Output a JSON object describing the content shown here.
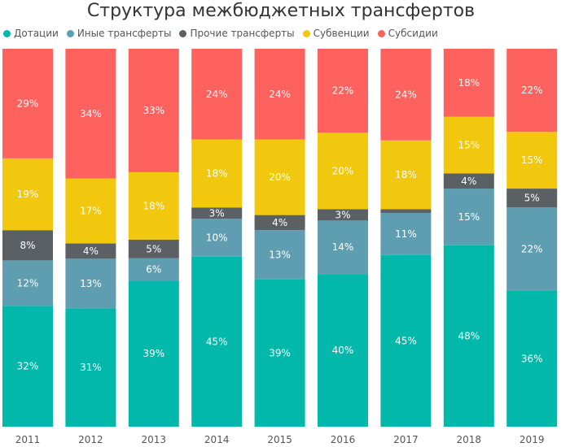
{
  "chart_data": {
    "type": "bar",
    "stacked": "100%",
    "title": "Структура межбюджетных трансфертов",
    "legend_position": "top-left",
    "categories": [
      "2011",
      "2012",
      "2013",
      "2014",
      "2015",
      "2016",
      "2017",
      "2018",
      "2019"
    ],
    "series": [
      {
        "name": "Дотации",
        "color": "#01B8AA",
        "values": [
          32,
          31,
          39,
          45,
          39,
          40,
          45,
          48,
          36
        ]
      },
      {
        "name": "Иные трансферты",
        "color": "#5F9EB0",
        "values": [
          12,
          13,
          6,
          10,
          13,
          14,
          11,
          15,
          22
        ]
      },
      {
        "name": "Прочие трансферты",
        "color": "#5A6064",
        "values": [
          8,
          4,
          5,
          3,
          4,
          3,
          1,
          4,
          5
        ]
      },
      {
        "name": "Субвенции",
        "color": "#F2C80F",
        "values": [
          19,
          17,
          18,
          18,
          20,
          20,
          18,
          15,
          15
        ]
      },
      {
        "name": "Субсидии",
        "color": "#FD625E",
        "values": [
          29,
          34,
          33,
          24,
          24,
          22,
          24,
          18,
          22
        ]
      }
    ],
    "labels": [
      [
        "32%",
        "31%",
        "39%",
        "45%",
        "39%",
        "40%",
        "45%",
        "48%",
        "36%"
      ],
      [
        "12%",
        "13%",
        "6%",
        "10%",
        "13%",
        "14%",
        "11%",
        "15%",
        "22%"
      ],
      [
        "8%",
        "4%",
        "5%",
        "3%",
        "4%",
        "3%",
        "",
        "4%",
        "5%"
      ],
      [
        "19%",
        "17%",
        "18%",
        "18%",
        "20%",
        "20%",
        "18%",
        "15%",
        "15%"
      ],
      [
        "29%",
        "34%",
        "33%",
        "24%",
        "24%",
        "22%",
        "24%",
        "18%",
        "22%"
      ]
    ]
  }
}
